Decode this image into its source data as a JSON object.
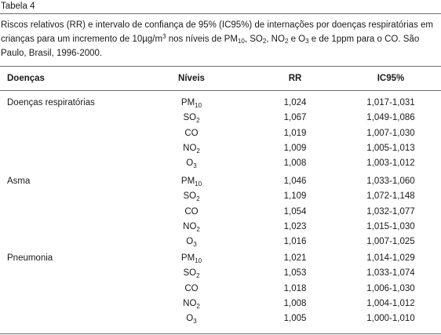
{
  "table_label": "Tabela 4",
  "caption": {
    "text1": "Riscos relativos (RR) e intervalo de confiança de 95% (IC95%) de internações por doenças respiratórias em crianças para um incremento de 10µg/m",
    "sup_3": "3",
    "text2": " nos níveis de PM",
    "sub_10": "10",
    "text3": ", SO",
    "sub_2a": "2",
    "text4": ", NO",
    "sub_2b": "2",
    "text5": " e O",
    "sub_3": "3",
    "text6": " e de 1ppm para o CO. São Paulo, Brasil, 1996-2000."
  },
  "headers": {
    "disease": "Doenças",
    "level": "Níveis",
    "rr": "RR",
    "ci": "IC95%"
  },
  "groups": [
    {
      "disease": "Doenças respiratórias",
      "rows": [
        {
          "level_base": "PM",
          "level_sub": "10",
          "rr": "1,024",
          "ci": "1,017-1,031"
        },
        {
          "level_base": "SO",
          "level_sub": "2",
          "rr": "1,067",
          "ci": "1,049-1,086"
        },
        {
          "level_base": "CO",
          "level_sub": "",
          "rr": "1,019",
          "ci": "1,007-1,030"
        },
        {
          "level_base": "NO",
          "level_sub": "2",
          "rr": "1,009",
          "ci": "1,005-1,013"
        },
        {
          "level_base": "O",
          "level_sub": "3",
          "rr": "1,008",
          "ci": "1,003-1,012"
        }
      ]
    },
    {
      "disease": "Asma",
      "rows": [
        {
          "level_base": "PM",
          "level_sub": "10",
          "rr": "1,046",
          "ci": "1,033-1,060"
        },
        {
          "level_base": "SO",
          "level_sub": "2",
          "rr": "1,109",
          "ci": "1,072-1,148"
        },
        {
          "level_base": "CO",
          "level_sub": "",
          "rr": "1,054",
          "ci": "1,032-1,077"
        },
        {
          "level_base": "NO",
          "level_sub": "2",
          "rr": "1,023",
          "ci": "1,015-1,030"
        },
        {
          "level_base": "O",
          "level_sub": "3",
          "rr": "1,016",
          "ci": "1,007-1,025"
        }
      ]
    },
    {
      "disease": "Pneumonia",
      "rows": [
        {
          "level_base": "PM",
          "level_sub": "10",
          "rr": "1,021",
          "ci": "1,014-1,029"
        },
        {
          "level_base": "SO",
          "level_sub": "2",
          "rr": "1,053",
          "ci": "1,033-1,074"
        },
        {
          "level_base": "CO",
          "level_sub": "",
          "rr": "1,018",
          "ci": "1,006-1,030"
        },
        {
          "level_base": "NO",
          "level_sub": "2",
          "rr": "1,008",
          "ci": "1,004-1,012"
        },
        {
          "level_base": "O",
          "level_sub": "3",
          "rr": "1,005",
          "ci": "1,000-1,010"
        }
      ]
    }
  ]
}
